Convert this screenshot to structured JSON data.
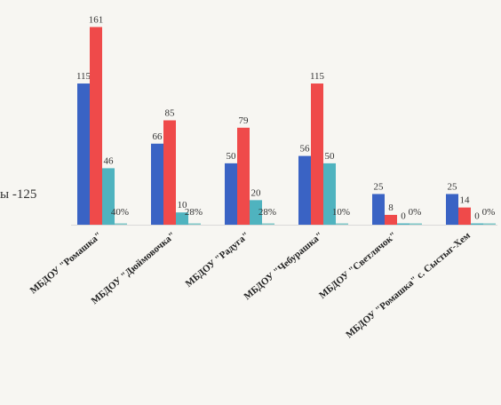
{
  "side_text": "ы -125",
  "chart_data": {
    "type": "bar",
    "categories": [
      "МБДОУ \"Ромашка\"",
      "МБДОУ \"Дюймовочка\"",
      "МБДОУ \"Радуга\"",
      "МБДОУ \"Чебурашка\"",
      "МБДОУ \"Светлячок\"",
      "МБДОУ \"Ромашка\" с. Сыстыг-Хем"
    ],
    "series": [
      {
        "color": "#3a63c4",
        "values": [
          115,
          66,
          50,
          56,
          25,
          25
        ],
        "labels": [
          "115",
          "66",
          "50",
          "56",
          "25",
          "25"
        ]
      },
      {
        "color": "#ef4a4a",
        "values": [
          161,
          85,
          79,
          115,
          8,
          14
        ],
        "labels": [
          "161",
          "85",
          "79",
          "115",
          "8",
          "14"
        ]
      },
      {
        "color": "#4fb3bf",
        "values": [
          46,
          10,
          20,
          50,
          0,
          0
        ],
        "labels": [
          "46",
          "10",
          "20",
          "50",
          "0",
          "0"
        ]
      },
      {
        "color": "#7fc7c7",
        "values": [
          0,
          0,
          0,
          0,
          0,
          0
        ],
        "labels": [
          "0",
          "0",
          "0",
          "0",
          "0",
          "0"
        ]
      }
    ],
    "percent_labels": [
      "40%",
      "28%",
      "28%",
      "10%",
      "0%",
      "0%"
    ],
    "ylim": [
      0,
      170
    ],
    "grid": false,
    "legend": "none"
  }
}
